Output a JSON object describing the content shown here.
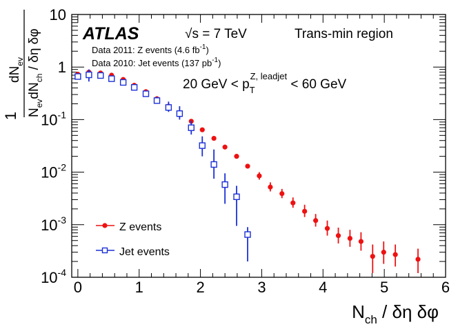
{
  "chart_data": {
    "type": "scatter",
    "yscale": "log",
    "xlim": [
      -0.1,
      6.0
    ],
    "ylim": [
      0.0001,
      10
    ],
    "xticks": [
      0,
      1,
      2,
      3,
      4,
      5,
      6
    ],
    "ytick_labels": [
      {
        "base": "10",
        "exp": "",
        "value": 10
      },
      {
        "base": "1",
        "exp": "",
        "value": 1
      },
      {
        "base": "10",
        "exp": "-1",
        "value": 0.1
      },
      {
        "base": "10",
        "exp": "-2",
        "value": 0.01
      },
      {
        "base": "10",
        "exp": "-3",
        "value": 0.001
      },
      {
        "base": "10",
        "exp": "-4",
        "value": 0.0001
      }
    ],
    "atlas_label": "ATLAS",
    "energy": {
      "root": "√",
      "rest": "s = 7 TeV"
    },
    "region_label": "Trans-min region",
    "data_lines": [
      {
        "text": "Data 2011: Z events (4.6 fb",
        "sup": "-1",
        "close": ")"
      },
      {
        "text": "Data 2010: Jet events (137 pb",
        "sup": "-1",
        "close": ")"
      }
    ],
    "cut_label": {
      "left": "20 GeV < p",
      "sub": "T",
      "sup": "Z, leadjet",
      "right": " < 60 GeV"
    },
    "ylabel": {
      "num": "dN",
      "num_sub": "ev",
      "den1": "N",
      "den1_sub": "ev",
      "den2": "dN",
      "den2_sub": "ch",
      "den_rest": " / δη δφ",
      "one": "1"
    },
    "xlabel": {
      "main": "N",
      "sub": "ch",
      "rest": " / δη δφ"
    },
    "series": [
      {
        "name": "Z events",
        "color": "#ee1111",
        "marker": "filled-circle",
        "points": [
          {
            "x": 0.0,
            "y": 0.73,
            "lo": 0.73,
            "hi": 0.73
          },
          {
            "x": 0.18,
            "y": 0.8,
            "lo": 0.8,
            "hi": 0.8
          },
          {
            "x": 0.37,
            "y": 0.77,
            "lo": 0.77,
            "hi": 0.77
          },
          {
            "x": 0.55,
            "y": 0.7,
            "lo": 0.7,
            "hi": 0.7
          },
          {
            "x": 0.74,
            "y": 0.58,
            "lo": 0.58,
            "hi": 0.58
          },
          {
            "x": 0.92,
            "y": 0.45,
            "lo": 0.45,
            "hi": 0.45
          },
          {
            "x": 1.11,
            "y": 0.34,
            "lo": 0.34,
            "hi": 0.34
          },
          {
            "x": 1.29,
            "y": 0.25,
            "lo": 0.25,
            "hi": 0.25
          },
          {
            "x": 1.48,
            "y": 0.18,
            "lo": 0.18,
            "hi": 0.18
          },
          {
            "x": 1.66,
            "y": 0.13,
            "lo": 0.13,
            "hi": 0.13
          },
          {
            "x": 1.85,
            "y": 0.093,
            "lo": 0.093,
            "hi": 0.093
          },
          {
            "x": 2.03,
            "y": 0.064,
            "lo": 0.064,
            "hi": 0.064
          },
          {
            "x": 2.22,
            "y": 0.044,
            "lo": 0.044,
            "hi": 0.044
          },
          {
            "x": 2.4,
            "y": 0.03,
            "lo": 0.03,
            "hi": 0.03
          },
          {
            "x": 2.59,
            "y": 0.02,
            "lo": 0.02,
            "hi": 0.02
          },
          {
            "x": 2.77,
            "y": 0.013,
            "lo": 0.0125,
            "hi": 0.0135
          },
          {
            "x": 2.96,
            "y": 0.0085,
            "lo": 0.0072,
            "hi": 0.01
          },
          {
            "x": 3.14,
            "y": 0.0052,
            "lo": 0.0043,
            "hi": 0.0064
          },
          {
            "x": 3.33,
            "y": 0.0039,
            "lo": 0.0032,
            "hi": 0.0048
          },
          {
            "x": 3.51,
            "y": 0.0026,
            "lo": 0.0021,
            "hi": 0.0033
          },
          {
            "x": 3.7,
            "y": 0.0018,
            "lo": 0.0014,
            "hi": 0.0024
          },
          {
            "x": 3.88,
            "y": 0.0012,
            "lo": 0.00092,
            "hi": 0.0016
          },
          {
            "x": 4.07,
            "y": 0.00085,
            "lo": 0.00062,
            "hi": 0.0012
          },
          {
            "x": 4.25,
            "y": 0.00062,
            "lo": 0.00044,
            "hi": 0.00088
          },
          {
            "x": 4.44,
            "y": 0.00055,
            "lo": 0.00038,
            "hi": 0.0008
          },
          {
            "x": 4.62,
            "y": 0.00048,
            "lo": 0.00032,
            "hi": 0.00072
          },
          {
            "x": 4.81,
            "y": 0.00025,
            "lo": 0.00012,
            "hi": 0.00042
          },
          {
            "x": 4.99,
            "y": 0.0003,
            "lo": 0.00018,
            "hi": 0.00048
          },
          {
            "x": 5.18,
            "y": 0.00027,
            "lo": 0.00016,
            "hi": 0.00042
          },
          {
            "x": 5.55,
            "y": 0.00022,
            "lo": 0.00012,
            "hi": 0.00035
          }
        ]
      },
      {
        "name": "Jet events",
        "color": "#1a2fd6",
        "marker": "open-square",
        "points": [
          {
            "x": 0.0,
            "y": 0.66,
            "lo": 0.66,
            "hi": 0.66
          },
          {
            "x": 0.18,
            "y": 0.71,
            "lo": 0.53,
            "hi": 0.9
          },
          {
            "x": 0.37,
            "y": 0.69,
            "lo": 0.69,
            "hi": 0.69
          },
          {
            "x": 0.55,
            "y": 0.6,
            "lo": 0.53,
            "hi": 0.67
          },
          {
            "x": 0.74,
            "y": 0.51,
            "lo": 0.51,
            "hi": 0.51
          },
          {
            "x": 0.92,
            "y": 0.41,
            "lo": 0.41,
            "hi": 0.41
          },
          {
            "x": 1.11,
            "y": 0.31,
            "lo": 0.28,
            "hi": 0.35
          },
          {
            "x": 1.29,
            "y": 0.23,
            "lo": 0.2,
            "hi": 0.27
          },
          {
            "x": 1.48,
            "y": 0.17,
            "lo": 0.14,
            "hi": 0.22
          },
          {
            "x": 1.66,
            "y": 0.13,
            "lo": 0.1,
            "hi": 0.18
          },
          {
            "x": 1.85,
            "y": 0.07,
            "lo": 0.052,
            "hi": 0.095
          },
          {
            "x": 2.03,
            "y": 0.032,
            "lo": 0.02,
            "hi": 0.048
          },
          {
            "x": 2.22,
            "y": 0.014,
            "lo": 0.0075,
            "hi": 0.027
          },
          {
            "x": 2.4,
            "y": 0.0058,
            "lo": 0.0025,
            "hi": 0.0095
          },
          {
            "x": 2.59,
            "y": 0.0034,
            "lo": 0.00095,
            "hi": 0.0055
          },
          {
            "x": 2.77,
            "y": 0.00065,
            "lo": 0.0002,
            "hi": 0.0009
          }
        ]
      }
    ],
    "legend": [
      {
        "label": "Z events",
        "series": 0
      },
      {
        "label": "Jet events",
        "series": 1
      }
    ],
    "legend_position": "bottom-left"
  }
}
